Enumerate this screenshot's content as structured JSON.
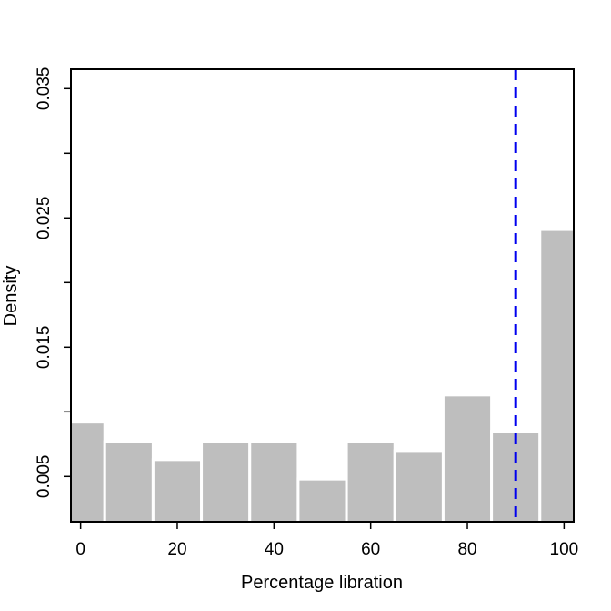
{
  "chart_data": {
    "type": "bar",
    "title": "",
    "xlabel": "Percentage libration",
    "ylabel": "Density",
    "xlim": [
      -2,
      102
    ],
    "ylim": [
      0.0015,
      0.0365
    ],
    "x_ticks": [
      0,
      20,
      40,
      60,
      80,
      100
    ],
    "x_tick_labels": [
      "0",
      "20",
      "40",
      "60",
      "80",
      "100"
    ],
    "y_ticks": [
      0.005,
      0.01,
      0.015,
      0.02,
      0.025,
      0.03,
      0.035
    ],
    "y_tick_labels": [
      "0.005",
      "",
      "0.015",
      "",
      "0.025",
      "",
      "0.035"
    ],
    "bins": [
      {
        "x0": -5,
        "x1": 5,
        "density": 0.0092
      },
      {
        "x0": 5,
        "x1": 15,
        "density": 0.0077
      },
      {
        "x0": 15,
        "x1": 25,
        "density": 0.0063
      },
      {
        "x0": 25,
        "x1": 35,
        "density": 0.0077
      },
      {
        "x0": 35,
        "x1": 45,
        "density": 0.0077
      },
      {
        "x0": 45,
        "x1": 55,
        "density": 0.0048
      },
      {
        "x0": 55,
        "x1": 65,
        "density": 0.0077
      },
      {
        "x0": 65,
        "x1": 75,
        "density": 0.007
      },
      {
        "x0": 75,
        "x1": 85,
        "density": 0.0113
      },
      {
        "x0": 85,
        "x1": 95,
        "density": 0.0085
      },
      {
        "x0": 95,
        "x1": 105,
        "density": 0.0241
      }
    ],
    "reference_line": {
      "x": 90,
      "style": "dashed"
    },
    "grid": false,
    "colors": {
      "bar": "#bebebe",
      "bar_border": "#ffffff",
      "reference_line": "#0000ee"
    }
  }
}
